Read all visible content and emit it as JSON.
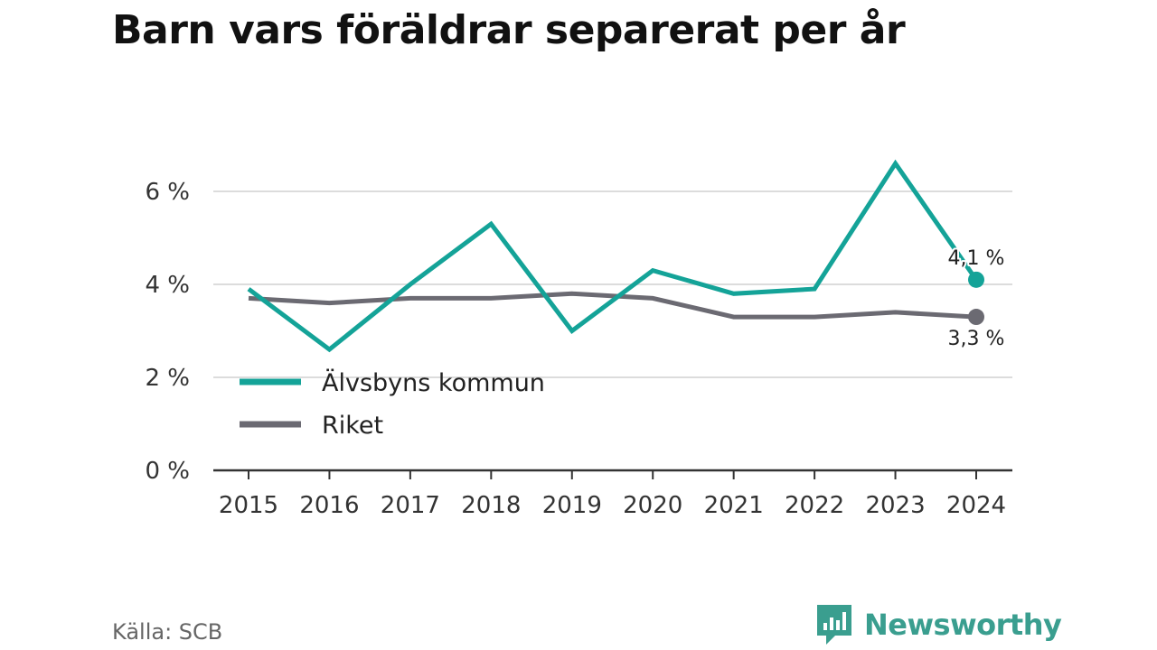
{
  "chart_data": {
    "type": "line",
    "title": "Barn vars föräldrar separerat per år",
    "categories": [
      "2015",
      "2016",
      "2017",
      "2018",
      "2019",
      "2020",
      "2021",
      "2022",
      "2023",
      "2024"
    ],
    "series": [
      {
        "name": "Älvsbyns kommun",
        "color": "#14a398",
        "values": [
          3.9,
          2.6,
          4.0,
          5.3,
          3.0,
          4.3,
          3.8,
          3.9,
          6.6,
          4.1
        ],
        "end_label": "4,1 %"
      },
      {
        "name": "Riket",
        "color": "#6b6a72",
        "values": [
          3.7,
          3.6,
          3.7,
          3.7,
          3.8,
          3.7,
          3.3,
          3.3,
          3.4,
          3.3
        ],
        "end_label": "3,3 %"
      }
    ],
    "ylim": [
      0,
      7
    ],
    "yticks": [
      0,
      2,
      4,
      6
    ],
    "ytick_labels": [
      "0 %",
      "2 %",
      "4 %",
      "6 %"
    ],
    "xlabel": "",
    "ylabel": "",
    "grid": true,
    "legend_position": "lower-left"
  },
  "footer": {
    "source": "Källa: SCB",
    "brand": "Newsworthy",
    "brand_color": "#3a9e8f"
  }
}
